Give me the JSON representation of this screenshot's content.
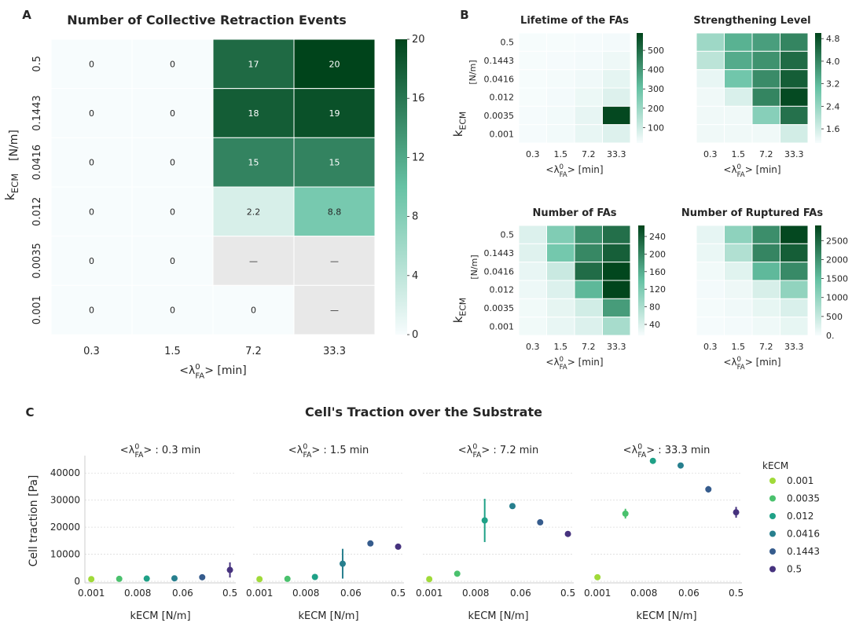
{
  "colors": {
    "low": "#f7fcfd",
    "mid": "#66c2a4",
    "high": "#00441b",
    "missing": "#e8e8e8",
    "grid": "#dddddd",
    "viridis": [
      "#a0da39",
      "#4ac16d",
      "#1fa187",
      "#277f8e",
      "#365c8d",
      "#46327e"
    ]
  },
  "panel_labels": [
    "A",
    "B",
    "C"
  ],
  "chart_data": [
    {
      "id": "A",
      "type": "heatmap",
      "title": "Number of Collective Retraction Events",
      "xlabel_pre": "<λ",
      "xlabel_sup": "0",
      "xlabel_sub": "FA",
      "xlabel_post": "> [min]",
      "ylabel_main": "k",
      "ylabel_sub": "ECM",
      "ylabel_unit": "[N/m]",
      "x_categories": [
        "0.3",
        "1.5",
        "7.2",
        "33.3"
      ],
      "y_categories": [
        "0.5",
        "0.1443",
        "0.0416",
        "0.012",
        "0.0035",
        "0.001"
      ],
      "values": [
        [
          0,
          0,
          17,
          20
        ],
        [
          0,
          0,
          18,
          19
        ],
        [
          0,
          0,
          15,
          15
        ],
        [
          0,
          0,
          2.2,
          8.8
        ],
        [
          0,
          0,
          null,
          null
        ],
        [
          0,
          0,
          0,
          null
        ]
      ],
      "cell_labels": [
        [
          "0",
          "0",
          "17",
          "20"
        ],
        [
          "0",
          "0",
          "18",
          "19"
        ],
        [
          "0",
          "0",
          "15",
          "15"
        ],
        [
          "0",
          "0",
          "2.2",
          "8.8"
        ],
        [
          "0",
          "0",
          "—",
          "—"
        ],
        [
          "0",
          "0",
          "0",
          "—"
        ]
      ],
      "vmin": 0,
      "vmax": 20,
      "colorbar_ticks": [
        0,
        4,
        8,
        12,
        16,
        20
      ],
      "colorbar_tick_labels": [
        "0",
        "4",
        "8",
        "12",
        "16",
        "20"
      ]
    },
    {
      "id": "B1",
      "type": "heatmap",
      "title": "Lifetime of the FAs",
      "xlabel_pre": "<λ",
      "xlabel_sup": "0",
      "xlabel_sub": "FA",
      "xlabel_post": "> [min]",
      "ylabel_main": "k",
      "ylabel_sub": "ECM",
      "ylabel_unit": "[N/m]",
      "x_categories": [
        "0.3",
        "1.5",
        "7.2",
        "33.3"
      ],
      "y_categories": [
        "0.5",
        "0.1443",
        "0.0416",
        "0.012",
        "0.0035",
        "0.001"
      ],
      "values": [
        [
          22,
          22,
          24,
          28
        ],
        [
          22,
          24,
          28,
          38
        ],
        [
          22,
          26,
          34,
          55
        ],
        [
          22,
          28,
          42,
          72
        ],
        [
          24,
          30,
          52,
          580
        ],
        [
          24,
          30,
          50,
          72
        ]
      ],
      "vmin": 20,
      "vmax": 590,
      "colorbar_ticks": [
        100,
        200,
        300,
        400,
        500
      ],
      "colorbar_tick_labels": [
        "100",
        "200",
        "300",
        "400",
        "500"
      ]
    },
    {
      "id": "B2",
      "type": "heatmap",
      "title": "Strengthening Level",
      "x_categories": [
        "0.3",
        "1.5",
        "7.2",
        "33.3"
      ],
      "y_categories": [
        "0.5",
        "0.1443",
        "0.0416",
        "0.012",
        "0.0035",
        "0.001"
      ],
      "values": [
        [
          2.3,
          3.3,
          3.6,
          4.0
        ],
        [
          1.9,
          3.4,
          3.8,
          4.4
        ],
        [
          1.3,
          2.9,
          3.9,
          4.6
        ],
        [
          1.2,
          1.5,
          4.0,
          4.9
        ],
        [
          1.2,
          1.2,
          2.6,
          4.3
        ],
        [
          1.2,
          1.2,
          1.2,
          1.6
        ]
      ],
      "vmin": 1.1,
      "vmax": 5.0,
      "colorbar_ticks": [
        1.6,
        2.4,
        3.2,
        4.0,
        4.8
      ],
      "colorbar_tick_labels": [
        "1.6",
        "2.4",
        "3.2",
        "4.0",
        "4.8"
      ]
    },
    {
      "id": "B3",
      "type": "heatmap",
      "title": "Number of FAs",
      "x_categories": [
        "0.3",
        "1.5",
        "7.2",
        "33.3"
      ],
      "y_categories": [
        "0.5",
        "0.1443",
        "0.0416",
        "0.012",
        "0.0035",
        "0.001"
      ],
      "values": [
        [
          38,
          118,
          190,
          222
        ],
        [
          36,
          128,
          198,
          238
        ],
        [
          28,
          55,
          225,
          262
        ],
        [
          24,
          38,
          150,
          264
        ],
        [
          20,
          30,
          48,
          178
        ],
        [
          20,
          28,
          38,
          84
        ]
      ],
      "vmin": 15,
      "vmax": 265,
      "colorbar_ticks": [
        40,
        80,
        120,
        160,
        200,
        240
      ],
      "colorbar_tick_labels": [
        "40",
        "80",
        "120",
        "160",
        "200",
        "240"
      ]
    },
    {
      "id": "B4",
      "type": "heatmap",
      "title": "Number of Ruptured FAs",
      "x_categories": [
        "0.3",
        "1.5",
        "7.2",
        "33.3"
      ],
      "y_categories": [
        "0.5",
        "0.1443",
        "0.0416",
        "0.012",
        "0.0035",
        "0.001"
      ],
      "values": [
        [
          170,
          1050,
          2050,
          2850
        ],
        [
          130,
          700,
          2150,
          2600
        ],
        [
          60,
          230,
          1550,
          2100
        ],
        [
          40,
          90,
          320,
          1020
        ],
        [
          30,
          70,
          160,
          300
        ],
        [
          20,
          40,
          80,
          160
        ]
      ],
      "vmin": 0,
      "vmax": 2900,
      "colorbar_ticks": [
        500,
        1000,
        1500,
        2000,
        2500
      ],
      "colorbar_tick_labels": [
        "500",
        "1000",
        "1500",
        "2000",
        "2500"
      ],
      "colorbar_extra_label": "0."
    },
    {
      "id": "C",
      "type": "scatter",
      "title": "Cell's Traction over the Substrate",
      "ylabel": "Cell traction [Pa]",
      "xlabel": "kECM [N/m]",
      "ylim": [
        0,
        45000
      ],
      "yticks": [
        0,
        10000,
        20000,
        30000,
        40000
      ],
      "ytick_labels": [
        "0",
        "10000",
        "20000",
        "30000",
        "40000"
      ],
      "x_categories": [
        "0.001",
        "0.0035",
        "0.012",
        "0.0416",
        "0.1443",
        "0.5"
      ],
      "xtick_labels": [
        "0.001",
        "0.008",
        "0.06",
        "0.5"
      ],
      "xtick_positions": [
        0.001,
        0.008,
        0.06,
        0.5
      ],
      "xlim_log": [
        0.00075,
        0.65
      ],
      "legend_title": "kECM",
      "legend_labels": [
        "0.001",
        "0.0035",
        "0.012",
        "0.0416",
        "0.1443",
        "0.5"
      ],
      "subplots": [
        {
          "title_pre": "<λ",
          "title_sup": "0",
          "title_sub": "FA",
          "title_post": "> : 0.3 min",
          "y": [
            800,
            900,
            1000,
            1100,
            1500,
            4200
          ],
          "err": [
            150,
            150,
            200,
            300,
            500,
            2800
          ]
        },
        {
          "title_pre": "<λ",
          "title_sup": "0",
          "title_sub": "FA",
          "title_post": "> : 1.5 min",
          "y": [
            800,
            900,
            1600,
            6500,
            14000,
            12800
          ],
          "err": [
            150,
            150,
            300,
            5500,
            600,
            500
          ]
        },
        {
          "title_pre": "<λ",
          "title_sup": "0",
          "title_sub": "FA",
          "title_post": "> : 7.2 min",
          "y": [
            800,
            2800,
            22500,
            27800,
            21800,
            17500
          ],
          "err": [
            150,
            400,
            8000,
            600,
            500,
            500
          ]
        },
        {
          "title_pre": "<λ",
          "title_sup": "0",
          "title_sub": "FA",
          "title_post": "> : 33.3 min",
          "y": [
            1500,
            25000,
            44500,
            42800,
            34000,
            25500
          ],
          "err": [
            300,
            1800,
            600,
            600,
            1200,
            2000
          ]
        }
      ]
    }
  ]
}
